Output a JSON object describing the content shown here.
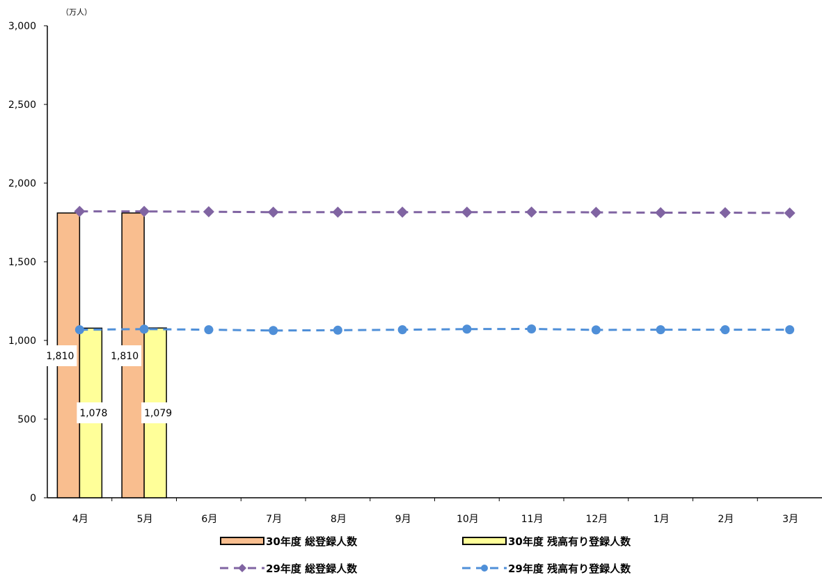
{
  "chart_data": {
    "type": "bar",
    "unit_label": "（万人）",
    "ylim": [
      0,
      3000
    ],
    "yticks": [
      "0",
      "500",
      "1,000",
      "1,500",
      "2,000",
      "2,500",
      "3,000"
    ],
    "ytick_values": [
      0,
      500,
      1000,
      1500,
      2000,
      2500,
      3000
    ],
    "categories": [
      "4月",
      "5月",
      "6月",
      "7月",
      "8月",
      "9月",
      "10月",
      "11月",
      "12月",
      "1月",
      "2月",
      "3月"
    ],
    "grid": false,
    "legend_position": "bottom",
    "series": [
      {
        "name": "30年度 総登録人数",
        "type": "bar",
        "color": "#F9BE8F",
        "values": [
          1810,
          1810,
          null,
          null,
          null,
          null,
          null,
          null,
          null,
          null,
          null,
          null
        ],
        "labels": [
          "1,810",
          "1,810",
          "",
          "",
          "",
          "",
          "",
          "",
          "",
          "",
          "",
          ""
        ]
      },
      {
        "name": "30年度 残高有り登録人数",
        "type": "bar",
        "color": "#FFFF99",
        "values": [
          1078,
          1079,
          null,
          null,
          null,
          null,
          null,
          null,
          null,
          null,
          null,
          null
        ],
        "labels": [
          "1,078",
          "1,079",
          "",
          "",
          "",
          "",
          "",
          "",
          "",
          "",
          "",
          ""
        ]
      },
      {
        "name": "29年度 総登録人数",
        "type": "line",
        "color": "#8064A2",
        "marker": "diamond",
        "values": [
          1820,
          1820,
          1818,
          1815,
          1815,
          1815,
          1815,
          1816,
          1814,
          1812,
          1812,
          1810
        ]
      },
      {
        "name": "29年度 残高有り登録人数",
        "type": "line",
        "color": "#4F8FD8",
        "marker": "circle",
        "values": [
          1068,
          1072,
          1068,
          1063,
          1065,
          1068,
          1072,
          1073,
          1067,
          1068,
          1068,
          1068
        ]
      }
    ]
  }
}
